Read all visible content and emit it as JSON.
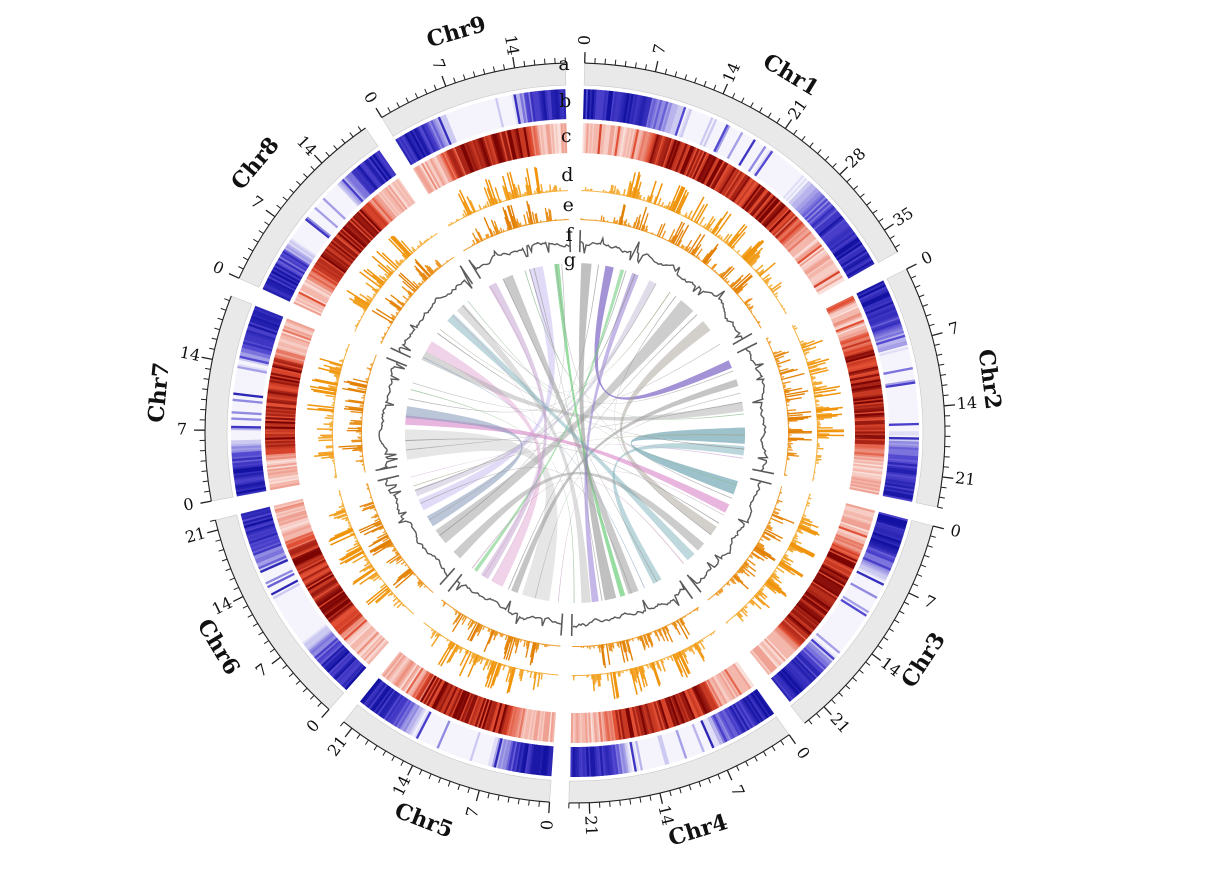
{
  "figure": {
    "description": "Circos-style circular genome plot with nine chromosome sectors and seven concentric tracks labelled a to g",
    "background": "#ffffff"
  },
  "chart_data": {
    "type": "circos",
    "unit": "Mb",
    "axis": {
      "tick_minor_interval": 1,
      "tick_major_interval": 7
    },
    "track_labels": [
      "a",
      "b",
      "c",
      "d",
      "e",
      "f",
      "g"
    ],
    "chromosomes": [
      {
        "name": "Chr1",
        "length": 37.5,
        "tick_labels": [
          0,
          7,
          14,
          21,
          28,
          35
        ]
      },
      {
        "name": "Chr2",
        "length": 24.0,
        "tick_labels": [
          0,
          7,
          14,
          21
        ]
      },
      {
        "name": "Chr3",
        "length": 23.5,
        "tick_labels": [
          0,
          7,
          14,
          21
        ]
      },
      {
        "name": "Chr4",
        "length": 23.0,
        "tick_labels": [
          0,
          7,
          14,
          21
        ]
      },
      {
        "name": "Chr5",
        "length": 22.0,
        "tick_labels": [
          0,
          7,
          14,
          21
        ]
      },
      {
        "name": "Chr6",
        "length": 22.0,
        "tick_labels": [
          0,
          7,
          14,
          21
        ]
      },
      {
        "name": "Chr7",
        "length": 20.5,
        "tick_labels": [
          0,
          7,
          14
        ]
      },
      {
        "name": "Chr8",
        "length": 19.5,
        "tick_labels": [
          0,
          7,
          14
        ]
      },
      {
        "name": "Chr9",
        "length": 19.0,
        "tick_labels": [
          0,
          7,
          14
        ]
      }
    ],
    "tracks": [
      {
        "id": "a",
        "kind": "ideogram",
        "fill": "#e9e9e9",
        "outline": "#c9c9c9",
        "tick_color": "#222222"
      },
      {
        "id": "b",
        "kind": "heatmap",
        "scale": [
          "#ffffff",
          "#4e43cf",
          "#0d0d9e"
        ],
        "pattern": "high-at-ends"
      },
      {
        "id": "c",
        "kind": "heatmap",
        "scale": [
          "#ffffff",
          "#e04a2e",
          "#740000"
        ],
        "pattern": "high-at-center"
      },
      {
        "id": "d",
        "kind": "histogram",
        "colors": [
          "#f7b84e",
          "#ee9004"
        ],
        "pattern": "peaks-mid"
      },
      {
        "id": "e",
        "kind": "histogram",
        "colors": [
          "#f2a437",
          "#e07c00"
        ],
        "pattern": "peaks-mid"
      },
      {
        "id": "f",
        "kind": "line",
        "color": "#5a5a5a"
      },
      {
        "id": "g",
        "kind": "links"
      }
    ],
    "procedural": {
      "seed": 42,
      "heat_bin_mb": 0.22,
      "hist_bin_mb": 0.18,
      "line_step_mb": 0.3
    },
    "links": [
      {
        "s": [
          "Chr7",
          1.0,
          7.5
        ],
        "t": [
          "Chr5",
          3.0,
          9.0
        ],
        "c": "#c8c8c8",
        "o": 0.45
      },
      {
        "s": [
          "Chr1",
          23.5,
          27.0
        ],
        "t": [
          "Chr6",
          5.0,
          8.5
        ],
        "c": "#9b9b9b",
        "o": 0.5
      },
      {
        "s": [
          "Chr1",
          0.4,
          2.6
        ],
        "t": [
          "Chr4",
          13.5,
          16.0
        ],
        "c": "#8d8d8d",
        "o": 0.55
      },
      {
        "s": [
          "Chr1",
          5.6,
          7.4
        ],
        "t": [
          "Chr2",
          0.6,
          2.4
        ],
        "c": "#7d64c4",
        "o": 0.7
      },
      {
        "s": [
          "Chr9",
          10.0,
          13.0
        ],
        "t": [
          "Chr6",
          13.5,
          16.0
        ],
        "c": "#cabdf0",
        "o": 0.55
      },
      {
        "s": [
          "Chr2",
          15.5,
          19.0
        ],
        "t": [
          "Chr3",
          1.2,
          4.2
        ],
        "c": "#5e9aa8",
        "o": 0.6
      },
      {
        "s": [
          "Chr4",
          3.0,
          5.0
        ],
        "t": [
          "Chr2",
          19.5,
          21.5
        ],
        "c": "#79b0ba",
        "o": 0.5
      },
      {
        "s": [
          "Chr3",
          6.5,
          8.5
        ],
        "t": [
          "Chr7",
          8.5,
          10.5
        ],
        "c": "#d678c2",
        "o": 0.55
      },
      {
        "s": [
          "Chr8",
          2.5,
          5.0
        ],
        "t": [
          "Chr5",
          13.5,
          16.0
        ],
        "c": "#e2a6d4",
        "o": 0.5
      },
      {
        "s": [
          "Chr7",
          10.0,
          12.5
        ],
        "t": [
          "Chr6",
          9.5,
          12.0
        ],
        "c": "#8497ba",
        "o": 0.55
      },
      {
        "s": [
          "Chr1",
          30.0,
          32.5
        ],
        "t": [
          "Chr3",
          12.0,
          14.0
        ],
        "c": "#a8a29a",
        "o": 0.5
      },
      {
        "s": [
          "Chr2",
          5.0,
          6.5
        ],
        "t": [
          "Chr5",
          10.0,
          11.5
        ],
        "c": "#8c8c8c",
        "o": 0.5
      },
      {
        "s": [
          "Chr9",
          15.5,
          16.6
        ],
        "t": [
          "Chr4",
          11.5,
          12.6
        ],
        "c": "#5fc96f",
        "o": 0.65
      },
      {
        "s": [
          "Chr1",
          8.9,
          9.7
        ],
        "t": [
          "Chr5",
          19.8,
          20.6
        ],
        "c": "#74cd80",
        "o": 0.6
      },
      {
        "s": [
          "Chr8",
          13.5,
          15.5
        ],
        "t": [
          "Chr4",
          19.0,
          21.0
        ],
        "c": "#b3b3b3",
        "o": 0.45
      },
      {
        "s": [
          "Chr6",
          0.5,
          2.5
        ],
        "t": [
          "Chr3",
          16.5,
          18.5
        ],
        "c": "#9a9a9a",
        "o": 0.5
      },
      {
        "s": [
          "Chr1",
          11.5,
          13.0
        ],
        "t": [
          "Chr4",
          17.3,
          18.8
        ],
        "c": "#8a6fd0",
        "o": 0.5
      },
      {
        "s": [
          "Chr9",
          4.0,
          6.3
        ],
        "t": [
          "Chr4",
          8.5,
          10.8
        ],
        "c": "#969696",
        "o": 0.5
      },
      {
        "s": [
          "Chr8",
          0.5,
          2.5
        ],
        "t": [
          "Chr2",
          10.0,
          12.0
        ],
        "c": "#a3a3a3",
        "o": 0.45
      },
      {
        "s": [
          "Chr9",
          0.6,
          2.4
        ],
        "t": [
          "Chr5",
          17.0,
          18.8
        ],
        "c": "#b892c8",
        "o": 0.45
      },
      {
        "s": [
          "Chr3",
          19.5,
          21.5
        ],
        "t": [
          "Chr8",
          10.5,
          12.5
        ],
        "c": "#6fa8b4",
        "o": 0.45
      },
      {
        "s": [
          "Chr1",
          15.5,
          17.0
        ],
        "t": [
          "Chr6",
          16.8,
          18.3
        ],
        "c": "#b5a8c9",
        "o": 0.4
      },
      {
        "s": [
          "Chr1",
          12.0,
          12.25
        ],
        "t": [
          "Chr6",
          18.0,
          18.2
        ],
        "c": "#909090",
        "o": 0.7
      },
      {
        "s": [
          "Chr1",
          17.0,
          17.2
        ],
        "t": [
          "Chr7",
          14.0,
          14.2
        ],
        "c": "#a0a0a0",
        "o": 0.7
      },
      {
        "s": [
          "Chr1",
          20.5,
          20.7
        ],
        "t": [
          "Chr8",
          8.0,
          8.15
        ],
        "c": "#8f9a77",
        "o": 0.7
      },
      {
        "s": [
          "Chr2",
          10.0,
          10.2
        ],
        "t": [
          "Chr7",
          3.0,
          3.2
        ],
        "c": "#999999",
        "o": 0.7
      },
      {
        "s": [
          "Chr2",
          12.5,
          12.7
        ],
        "t": [
          "Chr9",
          9.0,
          9.2
        ],
        "c": "#88b888",
        "o": 0.7
      },
      {
        "s": [
          "Chr2",
          22.0,
          22.2
        ],
        "t": [
          "Chr6",
          21.0,
          21.15
        ],
        "c": "#c79bd2",
        "o": 0.6
      },
      {
        "s": [
          "Chr3",
          5.0,
          5.2
        ],
        "t": [
          "Chr9",
          15.8,
          16.0
        ],
        "c": "#9f9f9f",
        "o": 0.7
      },
      {
        "s": [
          "Chr3",
          9.0,
          9.15
        ],
        "t": [
          "Chr5",
          1.0,
          1.15
        ],
        "c": "#b48eb0",
        "o": 0.6
      },
      {
        "s": [
          "Chr4",
          7.0,
          7.2
        ],
        "t": [
          "Chr8",
          1.0,
          1.2
        ],
        "c": "#8aa5c0",
        "o": 0.6
      },
      {
        "s": [
          "Chr4",
          16.5,
          16.7
        ],
        "t": [
          "Chr9",
          11.0,
          11.2
        ],
        "c": "#969696",
        "o": 0.7
      },
      {
        "s": [
          "Chr4",
          22.5,
          22.7
        ],
        "t": [
          "Chr7",
          16.0,
          16.2
        ],
        "c": "#77a877",
        "o": 0.6
      },
      {
        "s": [
          "Chr5",
          6.0,
          6.2
        ],
        "t": [
          "Chr2",
          8.0,
          8.2
        ],
        "c": "#a8a8a8",
        "o": 0.6
      },
      {
        "s": [
          "Chr5",
          12.0,
          12.2
        ],
        "t": [
          "Chr1",
          28.0,
          28.2
        ],
        "c": "#909090",
        "o": 0.7
      },
      {
        "s": [
          "Chr5",
          21.0,
          21.2
        ],
        "t": [
          "Chr3",
          22.5,
          22.7
        ],
        "c": "#bd8faf",
        "o": 0.6
      },
      {
        "s": [
          "Chr6",
          7.0,
          7.2
        ],
        "t": [
          "Chr1",
          4.0,
          4.2
        ],
        "c": "#8f8f8f",
        "o": 0.7
      },
      {
        "s": [
          "Chr6",
          19.0,
          19.2
        ],
        "t": [
          "Chr2",
          17.0,
          17.2
        ],
        "c": "#9a9a6f",
        "o": 0.6
      },
      {
        "s": [
          "Chr7",
          5.0,
          5.2
        ],
        "t": [
          "Chr3",
          11.0,
          11.2
        ],
        "c": "#909090",
        "o": 0.7
      },
      {
        "s": [
          "Chr7",
          17.5,
          17.7
        ],
        "t": [
          "Chr1",
          36.0,
          36.2
        ],
        "c": "#a5a5a5",
        "o": 0.6
      },
      {
        "s": [
          "Chr8",
          7.0,
          7.2
        ],
        "t": [
          "Chr2",
          20.0,
          20.2
        ],
        "c": "#8f8f8f",
        "o": 0.7
      },
      {
        "s": [
          "Chr8",
          12.0,
          12.15
        ],
        "t": [
          "Chr5",
          18.0,
          18.15
        ],
        "c": "#cc99c4",
        "o": 0.6
      },
      {
        "s": [
          "Chr8",
          16.5,
          16.7
        ],
        "t": [
          "Chr3",
          2.0,
          2.2
        ],
        "c": "#90b890",
        "o": 0.6
      },
      {
        "s": [
          "Chr9",
          4.0,
          4.2
        ],
        "t": [
          "Chr4",
          4.0,
          4.2
        ],
        "c": "#9f9f9f",
        "o": 0.7
      },
      {
        "s": [
          "Chr9",
          10.0,
          10.2
        ],
        "t": [
          "Chr1",
          10.0,
          10.2
        ],
        "c": "#8f8f8f",
        "o": 0.7
      },
      {
        "s": [
          "Chr9",
          17.0,
          17.2
        ],
        "t": [
          "Chr6",
          11.0,
          11.2
        ],
        "c": "#a0a0a0",
        "o": 0.6
      },
      {
        "s": [
          "Chr6",
          15.0,
          15.2
        ],
        "t": [
          "Chr4",
          10.0,
          10.2
        ],
        "c": "#999999",
        "o": 0.7
      },
      {
        "s": [
          "Chr5",
          16.0,
          16.2
        ],
        "t": [
          "Chr9",
          0.8,
          1.0
        ],
        "c": "#cfa0c8",
        "o": 0.6
      },
      {
        "s": [
          "Chr2",
          3.0,
          3.2
        ],
        "t": [
          "Chr8",
          15.0,
          15.2
        ],
        "c": "#9b9b9b",
        "o": 0.7
      },
      {
        "s": [
          "Chr3",
          14.0,
          14.2
        ],
        "t": [
          "Chr1",
          22.0,
          22.2
        ],
        "c": "#8f8f8f",
        "o": 0.7
      }
    ]
  }
}
